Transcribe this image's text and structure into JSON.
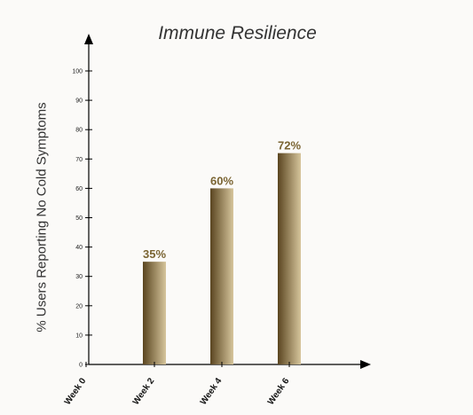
{
  "chart_data": {
    "type": "bar",
    "title": "Immune Resilience",
    "xlabel": "",
    "ylabel": "% Users Reporting No Cold Symptoms",
    "categories": [
      "Week 0",
      "Week 2",
      "Week 4",
      "Week 6"
    ],
    "values": [
      0,
      35,
      60,
      72
    ],
    "data_labels": [
      "",
      "35%",
      "60%",
      "72%"
    ],
    "ylim": [
      0,
      100
    ],
    "yticks": [
      0,
      10,
      20,
      30,
      40,
      50,
      60,
      70,
      80,
      90,
      100
    ],
    "grid": false,
    "legend": "none",
    "colors": {
      "bar_dark": "#5a4520",
      "bar_light": "#d6c59c",
      "label": "#7a6432",
      "axis": "#000000",
      "background": "#fbfaf8"
    }
  }
}
